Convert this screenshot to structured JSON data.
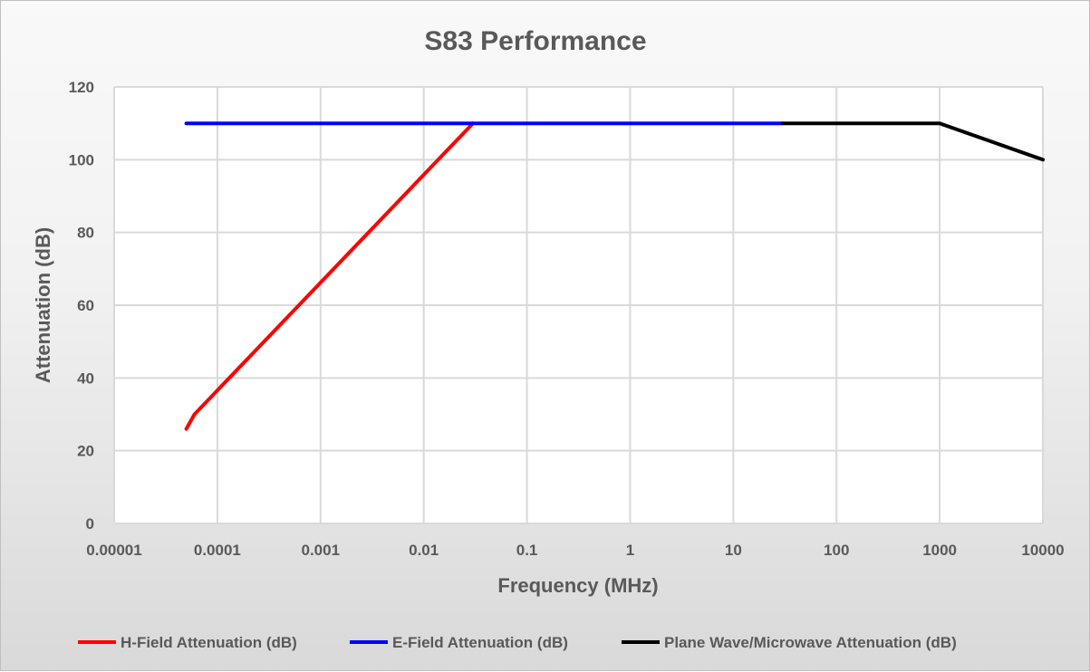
{
  "chart_data": {
    "type": "line",
    "title": "S83 Performance",
    "xlabel": "Frequency (MHz)",
    "ylabel": "Attenuation (dB)",
    "xscale": "log",
    "xlim": [
      1e-05,
      10000
    ],
    "ylim": [
      0,
      120
    ],
    "xticks": [
      "0.00001",
      "0.0001",
      "0.001",
      "0.01",
      "0.1",
      "1",
      "10",
      "100",
      "1000",
      "10000"
    ],
    "yticks": [
      "0",
      "20",
      "40",
      "60",
      "80",
      "100",
      "120"
    ],
    "grid": true,
    "legend": "bottom",
    "series": [
      {
        "name": "H-Field Attenuation (dB)",
        "color": "#ff0000",
        "x": [
          5e-05,
          6e-05,
          0.03
        ],
        "y": [
          26,
          30,
          110
        ]
      },
      {
        "name": "E-Field Attenuation (dB)",
        "color": "#0000ff",
        "x": [
          5e-05,
          30
        ],
        "y": [
          110,
          110
        ]
      },
      {
        "name": "Plane Wave/Microwave Attenuation (dB)",
        "color": "#000000",
        "x": [
          30,
          1000,
          10000
        ],
        "y": [
          110,
          110,
          100
        ]
      }
    ]
  }
}
